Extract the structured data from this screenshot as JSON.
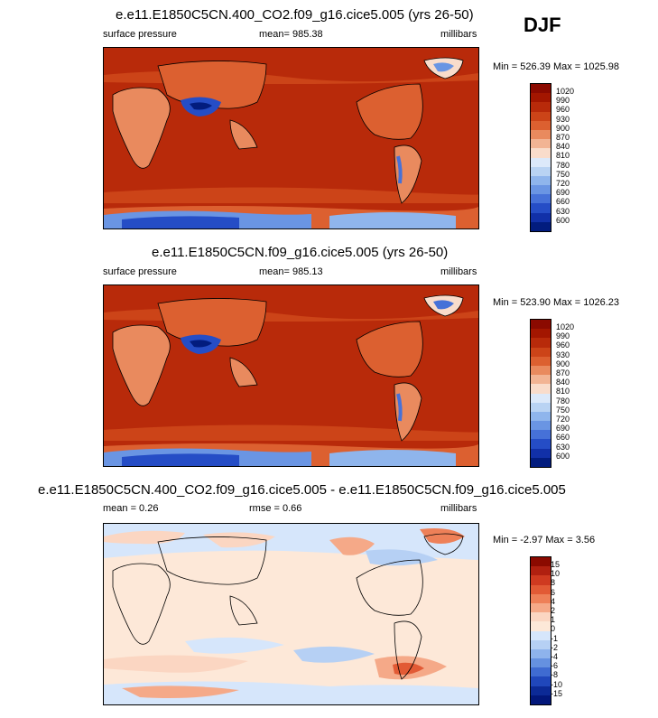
{
  "season": "DJF",
  "panels": [
    {
      "title": "e.e11.E1850C5CN.400_CO2.f09_g16.cice5.005 (yrs 26-50)",
      "left_label": "surface pressure",
      "center_label": "mean= 985.38",
      "right_label": "millibars",
      "minmax": "Min = 526.39 Max = 1025.98",
      "colorbar_labels": [
        "1020",
        "990",
        "960",
        "930",
        "900",
        "870",
        "840",
        "810",
        "780",
        "750",
        "720",
        "690",
        "660",
        "630",
        "600"
      ]
    },
    {
      "title": "e.e11.E1850C5CN.f09_g16.cice5.005 (yrs 26-50)",
      "left_label": "surface pressure",
      "center_label": "mean= 985.13",
      "right_label": "millibars",
      "minmax": "Min = 523.90 Max = 1026.23",
      "colorbar_labels": [
        "1020",
        "990",
        "960",
        "930",
        "900",
        "870",
        "840",
        "810",
        "780",
        "750",
        "720",
        "690",
        "660",
        "630",
        "600"
      ]
    },
    {
      "title": "e.e11.E1850C5CN.400_CO2.f09_g16.cice5.005 - e.e11.E1850C5CN.f09_g16.cice5.005",
      "left_label": "mean =  0.26",
      "center_label": "rmse =   0.66",
      "right_label": "millibars",
      "minmax": "Min =  -2.97 Max =   3.56",
      "colorbar_labels": [
        "15",
        "10",
        "8",
        "6",
        "4",
        "2",
        "1",
        "0",
        "-1",
        "-2",
        "-4",
        "-6",
        "-8",
        "-10",
        "-15"
      ]
    }
  ],
  "colors": {
    "pressure_scale": [
      "#8b0a00",
      "#a31600",
      "#b82a0a",
      "#cc4418",
      "#dc6030",
      "#e98a5e",
      "#f2b494",
      "#f9dccb",
      "#dce9fa",
      "#b9d3f3",
      "#8fb5ec",
      "#6a95e3",
      "#4671d8",
      "#254dc6",
      "#1130a8",
      "#021c7e"
    ],
    "diff_scale": [
      "#8b0a00",
      "#b02010",
      "#cf3a20",
      "#e25a35",
      "#ee8058",
      "#f5a988",
      "#fbd6c2",
      "#fde8d8",
      "#d6e6fb",
      "#b6d0f4",
      "#8eb3ec",
      "#6591e0",
      "#3f6bd1",
      "#2047bb",
      "#0c2a96",
      "#02177a"
    ]
  }
}
